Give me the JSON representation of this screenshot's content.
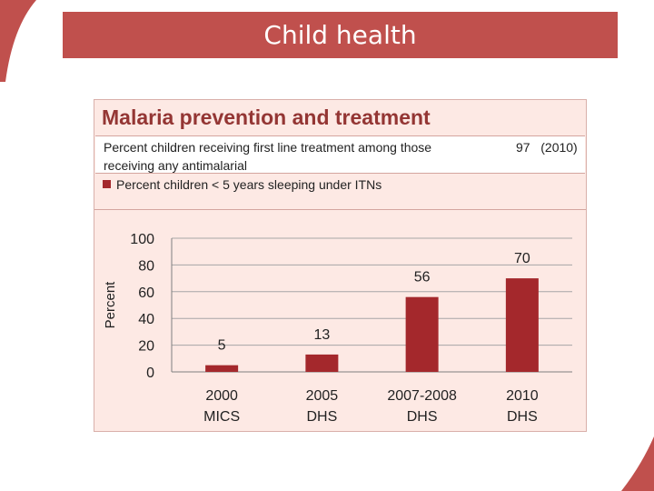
{
  "slide": {
    "title": "Child health"
  },
  "panel": {
    "title": "Malaria prevention and treatment",
    "treatment_label": "Percent children receiving first line treatment among those receiving any antimalarial",
    "treatment_value": "97",
    "treatment_year": "(2010)",
    "legend_label": "Percent children < 5 years sleeping under ITNs"
  },
  "colors": {
    "accent": "#c0504d",
    "bar": "#a4282c",
    "panel_bg": "#fde9e4",
    "title_text": "#943634"
  },
  "chart_data": {
    "type": "bar",
    "title": "Malaria prevention and treatment",
    "ylabel": "Percent",
    "xlabel": "",
    "ylim": [
      0,
      100
    ],
    "yticks": [
      0,
      20,
      40,
      60,
      80,
      100
    ],
    "grid": true,
    "categories": [
      [
        "2000",
        "MICS"
      ],
      [
        "2005",
        "DHS"
      ],
      [
        "2007-2008",
        "DHS"
      ],
      [
        "2010",
        "DHS"
      ]
    ],
    "series": [
      {
        "name": "Percent children < 5 years sleeping under ITNs",
        "values": [
          5,
          13,
          56,
          70
        ]
      }
    ],
    "data_labels": [
      "5",
      "13",
      "56",
      "70"
    ]
  }
}
